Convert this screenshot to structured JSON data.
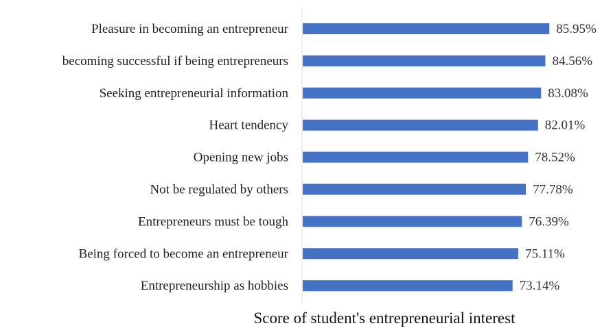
{
  "chart_data": {
    "type": "bar",
    "orientation": "horizontal",
    "categories": [
      "Pleasure in becoming an entrepreneur",
      "becoming successful if being entrepreneurs",
      "Seeking entrepreneurial information",
      "Heart tendency",
      "Opening new jobs",
      "Not be regulated by others",
      "Entrepreneurs must be tough",
      "Being forced to become an entrepreneur",
      "Entrepreneurship as hobbies"
    ],
    "values": [
      85.95,
      84.56,
      83.08,
      82.01,
      78.52,
      77.78,
      76.39,
      75.11,
      73.14
    ],
    "value_labels": [
      "85.95%",
      "84.56%",
      "83.08%",
      "82.01%",
      "78.52%",
      "77.78%",
      "76.39%",
      "75.11%",
      "73.14%"
    ],
    "title": "",
    "xlabel": "Score of student's entrepreneurial interest",
    "ylabel": "",
    "xlim": [
      0,
      100
    ],
    "grid": false,
    "legend": "none",
    "bar_color": "#4472C4",
    "axis_color": "#D9D9D9"
  }
}
